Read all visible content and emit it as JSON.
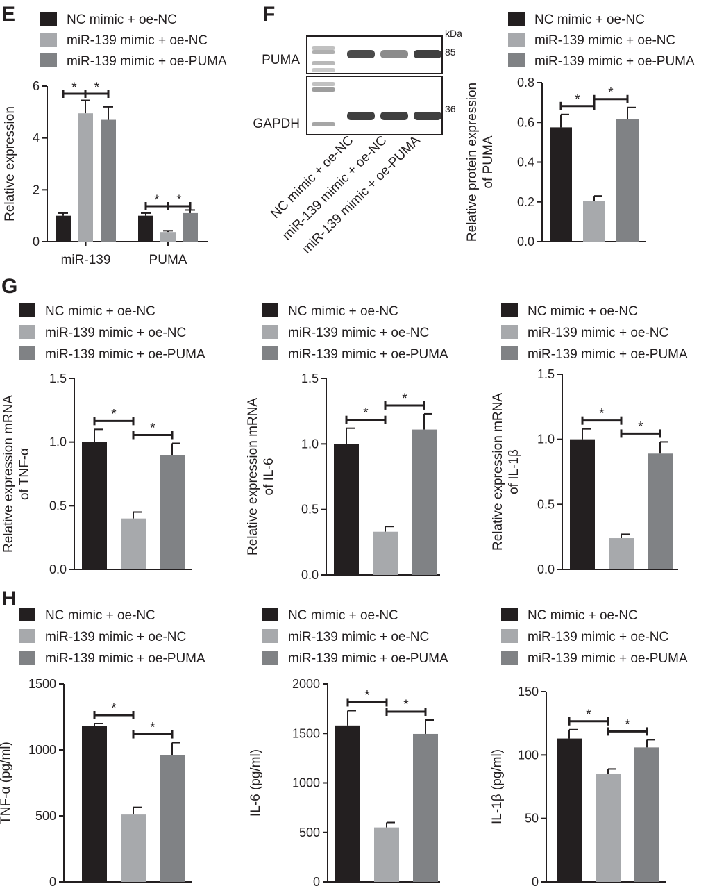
{
  "groups": [
    "NC mimic + oe-NC",
    "miR-139 mimic + oe-NC",
    "miR-139 mimic + oe-PUMA"
  ],
  "colors": [
    "#231f20",
    "#a7a9ac",
    "#808285"
  ],
  "panel_labels": {
    "E": "E",
    "F": "F",
    "G": "G",
    "H": "H"
  },
  "blot": {
    "rows": [
      "PUMA",
      "GAPDH"
    ],
    "kda_header": "kDa",
    "kda_values": [
      "85",
      "36"
    ],
    "lanes": [
      "NC mimic + oe-NC",
      "miR-139 mimic + oe-NC",
      "miR-139 mimic + oe-PUMA"
    ],
    "band_intensity": {
      "PUMA": [
        0.85,
        0.55,
        0.9
      ],
      "GAPDH": [
        0.9,
        0.9,
        0.9
      ]
    }
  },
  "chart_data": [
    {
      "id": "E",
      "type": "bar",
      "categories": [
        "miR-139",
        "PUMA"
      ],
      "series": [
        {
          "name": "NC mimic + oe-NC",
          "values": [
            1.0,
            1.0
          ],
          "errors": [
            0.1,
            0.1
          ]
        },
        {
          "name": "miR-139 mimic + oe-NC",
          "values": [
            4.95,
            0.37
          ],
          "errors": [
            0.5,
            0.05
          ]
        },
        {
          "name": "miR-139 mimic + oe-PUMA",
          "values": [
            4.7,
            1.1
          ],
          "errors": [
            0.5,
            0.12
          ]
        }
      ],
      "ylabel": "Relative expression",
      "xlabel": "",
      "ylim": [
        0,
        6
      ],
      "yticks": [
        "0",
        "2",
        "4",
        "6"
      ],
      "significance": [
        "*",
        "*",
        "*",
        "*"
      ]
    },
    {
      "id": "F",
      "type": "bar",
      "categories": [
        "NC mimic + oe-NC",
        "miR-139 mimic + oe-NC",
        "miR-139 mimic + oe-PUMA"
      ],
      "values": [
        0.575,
        0.205,
        0.615
      ],
      "errors": [
        0.065,
        0.025,
        0.06
      ],
      "ylabel": "Relative protein expression",
      "ylabel2": "of PUMA",
      "ylim": [
        0,
        0.8
      ],
      "yticks": [
        "0.0",
        "0.2",
        "0.4",
        "0.6",
        "0.8"
      ],
      "significance": [
        "*",
        "*"
      ]
    },
    {
      "id": "G1",
      "type": "bar",
      "categories": [
        "NC mimic + oe-NC",
        "miR-139 mimic + oe-NC",
        "miR-139 mimic + oe-PUMA"
      ],
      "values": [
        1.0,
        0.4,
        0.9
      ],
      "errors": [
        0.1,
        0.05,
        0.09
      ],
      "ylabel": "Relative expression mRNA",
      "ylabel2": "of TNF-α",
      "ylim": [
        0,
        1.5
      ],
      "yticks": [
        "0.0",
        "0.5",
        "1.0",
        "1.5"
      ],
      "significance": [
        "*",
        "*"
      ]
    },
    {
      "id": "G2",
      "type": "bar",
      "categories": [
        "NC mimic + oe-NC",
        "miR-139 mimic + oe-NC",
        "miR-139 mimic + oe-PUMA"
      ],
      "values": [
        1.0,
        0.33,
        1.11
      ],
      "errors": [
        0.12,
        0.04,
        0.12
      ],
      "ylabel": "Relative expression mRNA",
      "ylabel2": "of IL-6",
      "ylim": [
        0,
        1.5
      ],
      "yticks": [
        "0.0",
        "0.5",
        "1.0",
        "1.5"
      ],
      "significance": [
        "*",
        "*"
      ]
    },
    {
      "id": "G3",
      "type": "bar",
      "categories": [
        "NC mimic + oe-NC",
        "miR-139 mimic + oe-NC",
        "miR-139 mimic + oe-PUMA"
      ],
      "values": [
        1.0,
        0.24,
        0.89
      ],
      "errors": [
        0.08,
        0.03,
        0.09
      ],
      "ylabel": "Relative expression mRNA",
      "ylabel2": "of IL-1β",
      "ylim": [
        0,
        1.5
      ],
      "yticks": [
        "0.0",
        "0.5",
        "1.0",
        "1.5"
      ],
      "significance": [
        "*",
        "*"
      ]
    },
    {
      "id": "H1",
      "type": "bar",
      "categories": [
        "NC mimic + oe-NC",
        "miR-139 mimic + oe-NC",
        "miR-139 mimic + oe-PUMA"
      ],
      "values": [
        1180,
        510,
        960
      ],
      "errors": [
        20,
        55,
        95
      ],
      "ylabel": "TNF-α (pg/ml)",
      "ylabel2": "",
      "ylim": [
        0,
        1500
      ],
      "yticks": [
        "0",
        "500",
        "1000",
        "1500"
      ],
      "significance": [
        "*",
        "*"
      ]
    },
    {
      "id": "H2",
      "type": "bar",
      "categories": [
        "NC mimic + oe-NC",
        "miR-139 mimic + oe-NC",
        "miR-139 mimic + oe-PUMA"
      ],
      "values": [
        1580,
        550,
        1495
      ],
      "errors": [
        150,
        50,
        140
      ],
      "ylabel": "IL-6 (pg/ml)",
      "ylabel2": "",
      "ylim": [
        0,
        2000
      ],
      "yticks": [
        "0",
        "500",
        "1000",
        "1500",
        "2000"
      ],
      "significance": [
        "*",
        "*"
      ]
    },
    {
      "id": "H3",
      "type": "bar",
      "categories": [
        "NC mimic + oe-NC",
        "miR-139 mimic + oe-NC",
        "miR-139 mimic + oe-PUMA"
      ],
      "values": [
        113,
        85,
        106
      ],
      "errors": [
        7,
        4,
        6
      ],
      "ylabel": "IL-1β (pg/ml)",
      "ylabel2": "",
      "ylim": [
        0,
        150
      ],
      "yticks": [
        "0",
        "50",
        "100",
        "150"
      ],
      "significance": [
        "*",
        "*"
      ]
    }
  ]
}
